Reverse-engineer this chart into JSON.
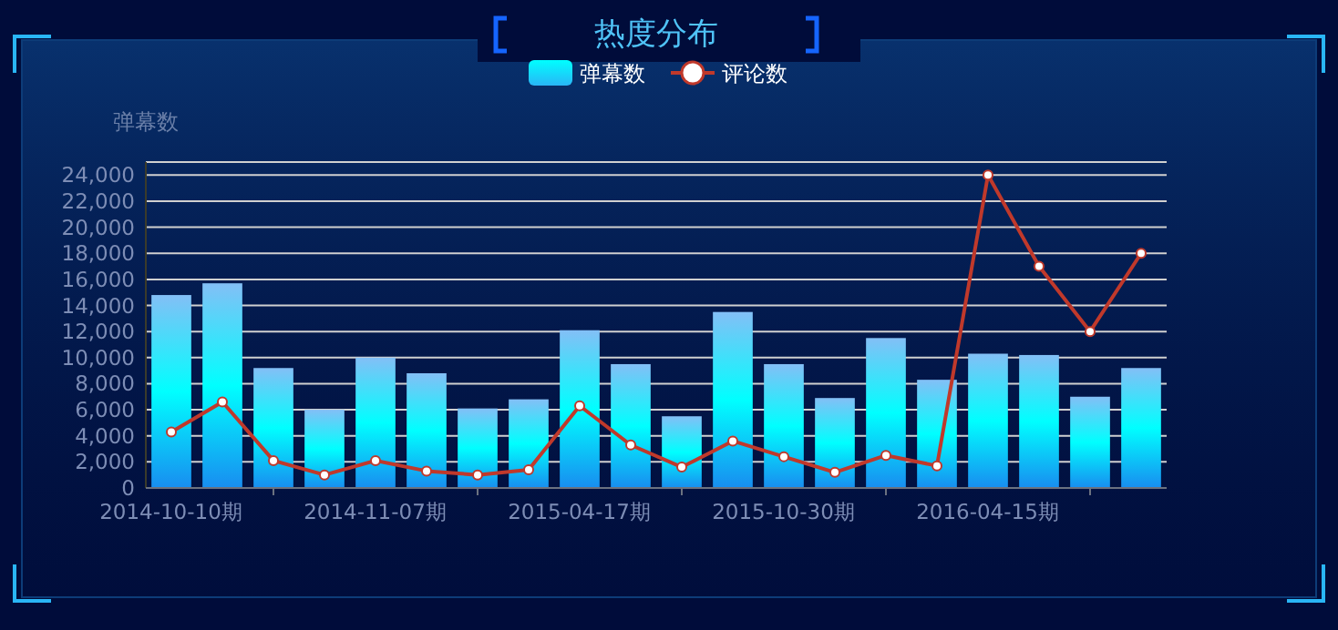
{
  "chart_data": {
    "type": "bar",
    "title": "热度分布",
    "ylabel": "弹幕数",
    "categories": [
      "2014-10-10期",
      null,
      null,
      null,
      "2014-11-07期",
      null,
      null,
      null,
      "2015-04-17期",
      null,
      null,
      null,
      "2015-10-30期",
      null,
      null,
      null,
      "2016-04-15期",
      null,
      null,
      null
    ],
    "series": [
      {
        "name": "弹幕数",
        "color": "#00ffff",
        "values": [
          14800,
          15700,
          9200,
          6000,
          10000,
          8800,
          6100,
          6800,
          12100,
          9500,
          5500,
          13500,
          9500,
          6900,
          11500,
          8300,
          10300,
          10200,
          7000,
          9200
        ]
      },
      {
        "name": "评论数",
        "type": "line",
        "color": "#c0392b",
        "marker": "circle",
        "values": [
          4300,
          6600,
          2100,
          1000,
          2100,
          1300,
          1000,
          1400,
          6300,
          3300,
          1600,
          3600,
          2400,
          1200,
          2500,
          1700,
          24000,
          17000,
          12000,
          18000
        ]
      }
    ],
    "ylim": [
      0,
      25000
    ],
    "yticks": [
      {
        "value": 0,
        "label": "0"
      },
      {
        "value": 2000,
        "label": "2,000"
      },
      {
        "value": 4000,
        "label": "4,000"
      },
      {
        "value": 6000,
        "label": "6,000"
      },
      {
        "value": 8000,
        "label": "8,000"
      },
      {
        "value": 10000,
        "label": "10,000"
      },
      {
        "value": 12000,
        "label": "12,000"
      },
      {
        "value": 14000,
        "label": "14,000"
      },
      {
        "value": 16000,
        "label": "16,000"
      },
      {
        "value": 18000,
        "label": "18,000"
      },
      {
        "value": 20000,
        "label": "20,000"
      },
      {
        "value": 22000,
        "label": "22,000"
      },
      {
        "value": 24000,
        "label": "24,000"
      }
    ],
    "grid": "y",
    "legend": "top"
  }
}
